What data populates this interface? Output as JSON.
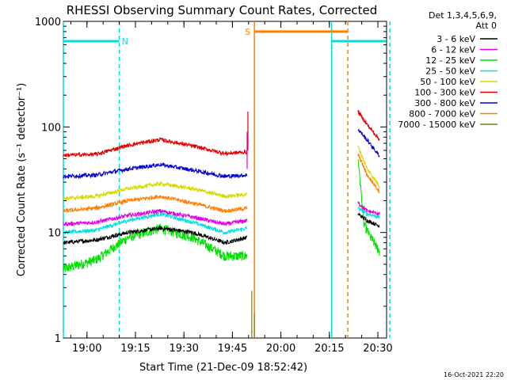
{
  "chart_data": {
    "type": "line",
    "title": "RHESSI Observing Summary Count Rates, Corrected",
    "xlabel": "Start Time (21-Dec-09 18:52:42)",
    "ylabel": "Corrected Count Rate (s⁻¹ detector⁻¹)",
    "y_scale": "log",
    "ylim": [
      1,
      1000
    ],
    "xlim_minutes_after_1852": [
      0,
      100
    ],
    "x_ticks": [
      {
        "label": "19:00",
        "min": 7.3
      },
      {
        "label": "19:15",
        "min": 22.3
      },
      {
        "label": "19:30",
        "min": 37.3
      },
      {
        "label": "19:45",
        "min": 52.3
      },
      {
        "label": "20:00",
        "min": 67.3
      },
      {
        "label": "20:15",
        "min": 82.3
      },
      {
        "label": "20:30",
        "min": 97.3
      }
    ],
    "y_ticks": [
      {
        "label": "1",
        "value": 1
      },
      {
        "label": "10",
        "value": 10
      },
      {
        "label": "100",
        "value": 100
      },
      {
        "label": "1000",
        "value": 1000
      }
    ],
    "legend_header": [
      "Det 1,3,4,5,6,9,",
      "Att 0"
    ],
    "legend_placement": "right",
    "footer_date": "16-Oct-2021 22:20",
    "series": [
      {
        "name": "3 - 6 keV",
        "color": "#000000",
        "before": [
          [
            0,
            8
          ],
          [
            10,
            8.5
          ],
          [
            20,
            10
          ],
          [
            30,
            11
          ],
          [
            40,
            10
          ],
          [
            50,
            8
          ],
          [
            57,
            9
          ]
        ],
        "after": [
          [
            91.2,
            15
          ],
          [
            94,
            13
          ],
          [
            98,
            11.5
          ]
        ]
      },
      {
        "name": "6 - 12 keV",
        "color": "#e000e0",
        "before": [
          [
            0,
            12
          ],
          [
            10,
            12.5
          ],
          [
            20,
            14.5
          ],
          [
            30,
            16
          ],
          [
            40,
            14
          ],
          [
            50,
            12
          ],
          [
            57,
            13
          ]
        ],
        "after": [
          [
            91.2,
            19
          ],
          [
            94,
            16
          ],
          [
            98,
            15
          ]
        ]
      },
      {
        "name": "12 - 25 keV",
        "color": "#00e000",
        "before": [
          [
            0,
            4.5
          ],
          [
            10,
            5.5
          ],
          [
            20,
            9
          ],
          [
            30,
            11
          ],
          [
            40,
            9
          ],
          [
            50,
            6
          ],
          [
            57,
            6
          ]
        ],
        "after": [
          [
            91.2,
            50
          ],
          [
            93,
            12
          ],
          [
            95,
            9
          ],
          [
            98,
            6.5
          ]
        ]
      },
      {
        "name": "25 - 50 keV",
        "color": "#00e0e0",
        "before": [
          [
            0,
            10
          ],
          [
            10,
            10.5
          ],
          [
            20,
            13
          ],
          [
            30,
            15
          ],
          [
            40,
            12.5
          ],
          [
            50,
            10
          ],
          [
            57,
            11
          ]
        ],
        "after": [
          [
            91.2,
            17
          ],
          [
            94,
            15
          ],
          [
            98,
            14
          ]
        ]
      },
      {
        "name": "50 - 100 keV",
        "color": "#d8d800",
        "before": [
          [
            0,
            21
          ],
          [
            10,
            22
          ],
          [
            20,
            26
          ],
          [
            30,
            29
          ],
          [
            40,
            26
          ],
          [
            50,
            22
          ],
          [
            57,
            23
          ]
        ],
        "after": [
          [
            91.2,
            65
          ],
          [
            94,
            40
          ],
          [
            98,
            27
          ]
        ]
      },
      {
        "name": "100 - 300 keV",
        "color": "#e00000",
        "before": [
          [
            0,
            54
          ],
          [
            10,
            55
          ],
          [
            20,
            67
          ],
          [
            30,
            76
          ],
          [
            40,
            66
          ],
          [
            50,
            56
          ],
          [
            57,
            58
          ]
        ],
        "after": [
          [
            91.2,
            140
          ],
          [
            94,
            105
          ],
          [
            98,
            75
          ]
        ]
      },
      {
        "name": "300 - 800 keV",
        "color": "#0000d0",
        "before": [
          [
            0,
            34
          ],
          [
            10,
            35
          ],
          [
            20,
            40
          ],
          [
            30,
            44
          ],
          [
            40,
            39
          ],
          [
            50,
            34
          ],
          [
            57,
            35
          ]
        ],
        "after": [
          [
            91.2,
            95
          ],
          [
            94,
            75
          ],
          [
            98,
            52
          ]
        ]
      },
      {
        "name": "800 - 7000 keV",
        "color": "#ff8000",
        "before": [
          [
            0,
            16
          ],
          [
            10,
            17
          ],
          [
            20,
            20
          ],
          [
            30,
            22
          ],
          [
            40,
            19
          ],
          [
            50,
            16
          ],
          [
            57,
            17
          ]
        ],
        "after": [
          [
            91.2,
            55
          ],
          [
            94,
            35
          ],
          [
            98,
            24
          ]
        ]
      },
      {
        "name": "7000 - 15000 keV",
        "color": "#808000",
        "before": [],
        "after": []
      }
    ],
    "flag_bars": [
      {
        "label": "N",
        "color": "#00e0e0",
        "value": 650,
        "segments": [
          [
            0,
            17.3
          ],
          [
            83,
            101
          ]
        ]
      },
      {
        "label": "S",
        "color": "#ff8000",
        "value": 800,
        "segments": [
          [
            59.1,
            88
          ]
        ]
      }
    ],
    "marker_lines": [
      {
        "color": "#00e0e0",
        "style": "solid",
        "min": 0
      },
      {
        "color": "#00e0e0",
        "style": "dashed",
        "min": 17.3
      },
      {
        "color": "#ff8000",
        "style": "solid",
        "min": 59.1
      },
      {
        "color": "#00e0e0",
        "style": "solid",
        "min": 83
      },
      {
        "color": "#ff8000",
        "style": "dashed",
        "min": 88
      },
      {
        "color": "#00e0e0",
        "style": "dashed",
        "min": 101
      }
    ]
  }
}
